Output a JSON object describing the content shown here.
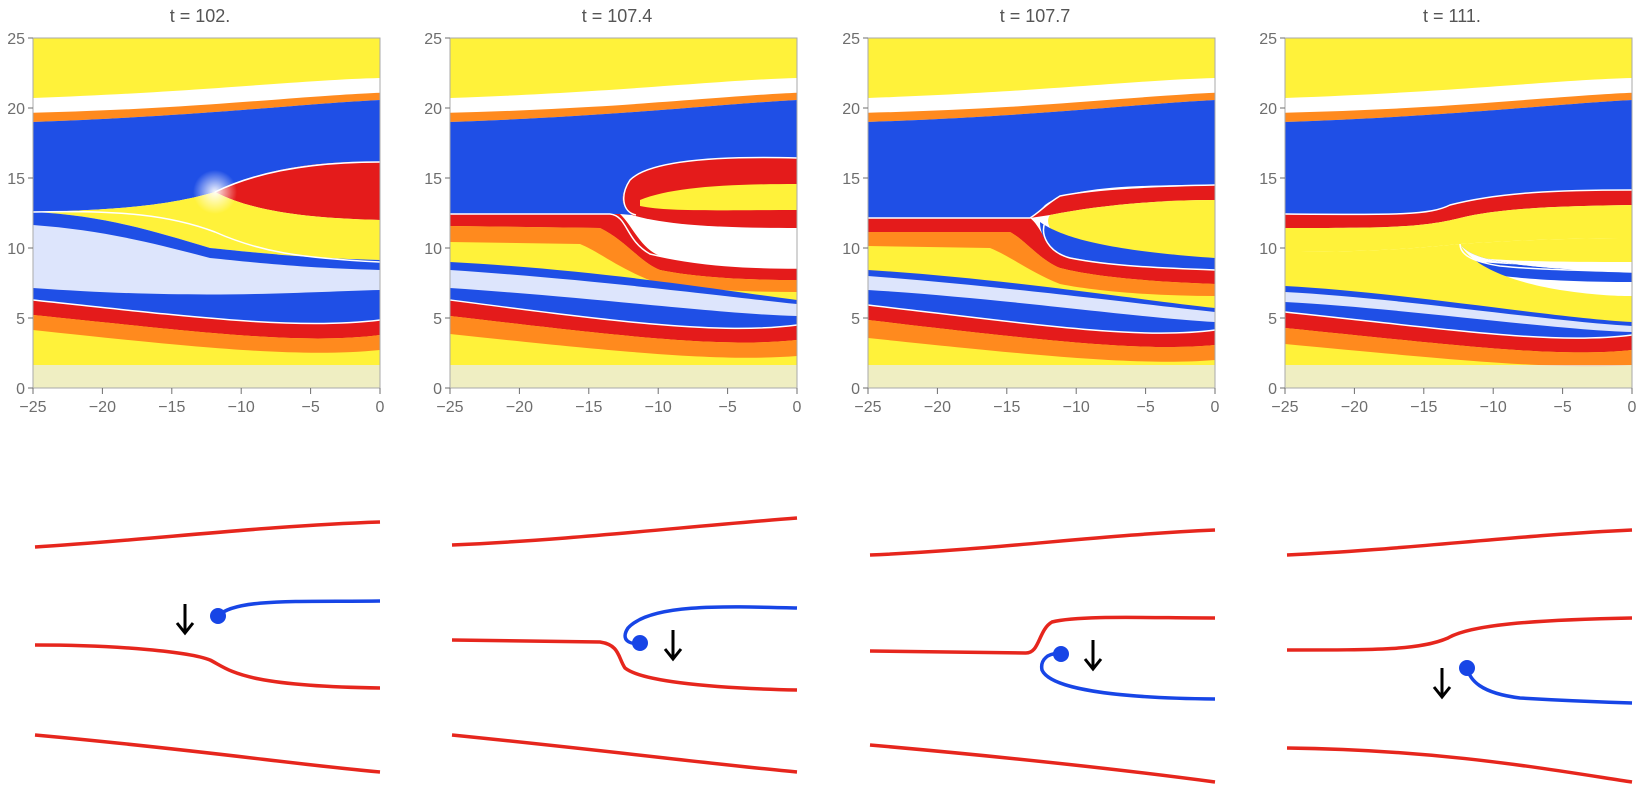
{
  "colors": {
    "field_low": "#1f4fe6",
    "field_mid": "#ffffff",
    "field_high_1": "#fff23a",
    "field_high_2": "#e41b1b",
    "contour": "#ffffff",
    "red_line": "#e6261d",
    "blue_line": "#1745e6",
    "arrow": "#000000",
    "axis": "#6e6e6e"
  },
  "axes": {
    "x_ticks": [
      "-25",
      "-20",
      "-15",
      "-10",
      "-5",
      "0"
    ],
    "y_ticks": [
      "0",
      "5",
      "10",
      "15",
      "20",
      "25"
    ],
    "x_range": [
      -25,
      0
    ],
    "y_range": [
      0,
      25
    ]
  },
  "panels": [
    {
      "title": "t = 102.",
      "defect": {
        "x": -11.8,
        "y": 14.2
      },
      "arrow": {
        "x": -14.0,
        "side": "left",
        "dir": "down"
      }
    },
    {
      "title": "t = 107.4",
      "defect": {
        "x": -11.6,
        "y": 11.9
      },
      "arrow": {
        "x": -9.2,
        "side": "right",
        "dir": "down"
      }
    },
    {
      "title": "t = 107.7",
      "defect": {
        "x": -12.0,
        "y": 11.8
      },
      "arrow": {
        "x": -9.2,
        "side": "right",
        "dir": "down"
      }
    },
    {
      "title": "t = 111.",
      "defect": {
        "x": -12.2,
        "y": 10.3
      },
      "arrow": {
        "x": -14.0,
        "side": "left",
        "dir": "down"
      }
    }
  ]
}
